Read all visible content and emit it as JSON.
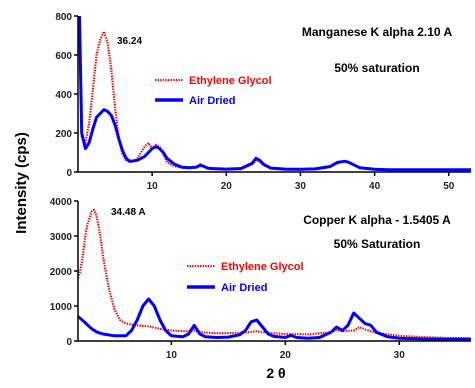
{
  "ylabel": "Intensity (cps)",
  "xlabel": "2 θ",
  "chart_data": [
    {
      "type": "line",
      "panel": "top",
      "title": "Manganese K alpha 2.10 A",
      "subtitle": "50% saturation",
      "peak_label": "36.24",
      "xlim": [
        0,
        53
      ],
      "ylim": [
        0,
        800
      ],
      "xticks": [
        10,
        20,
        30,
        40,
        50
      ],
      "yticks": [
        0,
        200,
        400,
        600,
        800
      ],
      "legend_position": "middle-left",
      "series": [
        {
          "name": "Ethylene Glycol",
          "color": "#ff0000",
          "style": "dotted",
          "x": [
            0.2,
            0.5,
            1,
            1.5,
            2,
            2.5,
            3,
            3.5,
            4,
            4.5,
            5,
            5.5,
            6,
            6.5,
            7,
            7.5,
            8,
            9,
            9.5,
            10,
            10.5,
            11,
            11.5,
            12,
            13,
            14,
            15,
            16,
            16.5,
            17,
            17.5,
            18,
            20,
            22,
            23.5,
            24,
            24.5,
            25,
            26,
            28,
            30,
            32,
            34,
            35,
            36,
            36.5,
            37,
            38,
            40,
            42,
            45,
            48,
            50,
            53
          ],
          "y": [
            800,
            180,
            150,
            250,
            420,
            600,
            680,
            720,
            660,
            520,
            330,
            170,
            90,
            60,
            50,
            55,
            70,
            130,
            150,
            120,
            140,
            130,
            90,
            50,
            30,
            22,
            20,
            25,
            40,
            30,
            18,
            15,
            12,
            15,
            40,
            60,
            55,
            35,
            18,
            12,
            12,
            14,
            25,
            45,
            55,
            50,
            40,
            20,
            12,
            10,
            10,
            10,
            10,
            10
          ]
        },
        {
          "name": "Air Dried",
          "color": "#0000ff",
          "style": "solid",
          "x": [
            0.2,
            0.5,
            1,
            1.5,
            2,
            2.5,
            3,
            3.5,
            4,
            4.5,
            5,
            5.5,
            6,
            6.5,
            7,
            8,
            9,
            9.5,
            10,
            10.5,
            11,
            11.5,
            12,
            13,
            14,
            15,
            16,
            16.5,
            17,
            17.5,
            18,
            20,
            22,
            23.5,
            24,
            24.5,
            25,
            26,
            28,
            30,
            32,
            34,
            35,
            36,
            36.5,
            37,
            38,
            40,
            42,
            45,
            48,
            50,
            53
          ],
          "y": [
            800,
            200,
            120,
            150,
            220,
            280,
            300,
            320,
            310,
            290,
            240,
            170,
            110,
            70,
            55,
            60,
            80,
            100,
            120,
            130,
            120,
            100,
            70,
            40,
            25,
            22,
            25,
            35,
            28,
            20,
            18,
            15,
            18,
            45,
            70,
            60,
            40,
            20,
            15,
            14,
            16,
            28,
            50,
            55,
            50,
            40,
            22,
            14,
            12,
            12,
            12,
            12,
            12
          ]
        }
      ]
    },
    {
      "type": "line",
      "panel": "bottom",
      "title": "Copper K alpha - 1.5405 A",
      "subtitle": "50% Saturation",
      "peak_label": "34.48 A",
      "xlim": [
        1.8,
        36.3
      ],
      "ylim": [
        0,
        4000
      ],
      "xticks": [
        10,
        20,
        30
      ],
      "yticks": [
        0,
        1000,
        2000,
        3000,
        4000
      ],
      "legend_position": "middle",
      "series": [
        {
          "name": "Ethylene Glycol",
          "color": "#ff0000",
          "style": "dotted",
          "x": [
            1.8,
            2,
            2.2,
            2.4,
            2.6,
            2.8,
            3,
            3.2,
            3.4,
            3.6,
            3.8,
            4,
            4.5,
            5,
            5.5,
            6,
            6.5,
            7,
            8,
            9,
            10,
            11,
            11.8,
            12,
            12.2,
            13,
            14,
            16,
            17,
            17.5,
            18,
            19,
            20,
            21,
            22,
            24,
            24.5,
            25,
            26,
            26.5,
            27,
            28,
            30,
            32,
            34,
            36.3
          ],
          "y": [
            1800,
            2000,
            2400,
            2900,
            3300,
            3500,
            3700,
            3750,
            3600,
            3300,
            2900,
            2400,
            1500,
            900,
            600,
            500,
            470,
            450,
            420,
            350,
            300,
            280,
            280,
            300,
            280,
            240,
            220,
            230,
            260,
            280,
            250,
            220,
            200,
            200,
            190,
            250,
            320,
            280,
            300,
            400,
            330,
            230,
            150,
            110,
            90,
            80
          ]
        },
        {
          "name": "Air Dried",
          "color": "#0000ff",
          "style": "solid",
          "x": [
            1.8,
            2,
            2.5,
            3,
            3.5,
            4,
            5,
            6,
            6.5,
            7,
            7.5,
            8,
            8.5,
            9,
            9.5,
            10,
            11,
            11.5,
            12,
            12.5,
            13,
            14,
            15,
            16,
            16.5,
            17,
            17.5,
            18,
            18.5,
            19,
            20,
            20.5,
            21,
            22,
            23,
            24,
            24.5,
            25,
            25.5,
            26,
            26.5,
            27,
            27.5,
            28,
            29,
            30,
            32,
            34,
            36.3
          ],
          "y": [
            700,
            650,
            500,
            350,
            250,
            200,
            150,
            150,
            300,
            600,
            1000,
            1200,
            1000,
            600,
            300,
            150,
            120,
            200,
            450,
            200,
            120,
            100,
            110,
            180,
            300,
            550,
            600,
            400,
            200,
            130,
            100,
            160,
            100,
            80,
            100,
            250,
            400,
            300,
            450,
            800,
            650,
            500,
            450,
            250,
            120,
            80,
            60,
            55,
            50
          ]
        }
      ]
    }
  ]
}
